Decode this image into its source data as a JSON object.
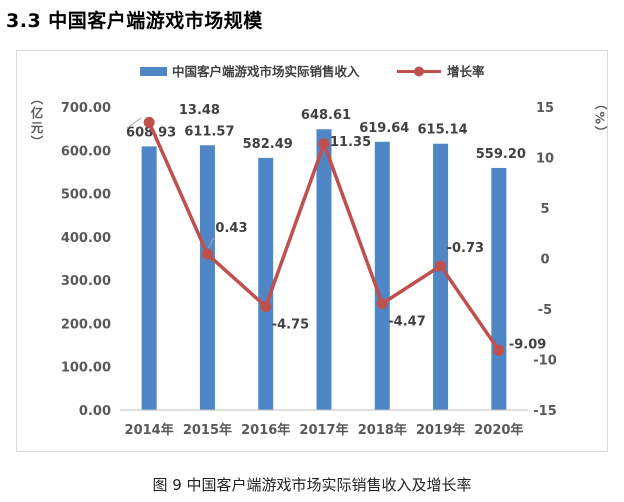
{
  "section_title": "3.3  中国客户端游戏市场规模",
  "caption": "图 9  中国客户端游戏市场实际销售收入及增长率",
  "colors": {
    "bar": "#4f86c6",
    "line": "#c0504d",
    "axis_text": "#595959",
    "gridline": "#d9d9d9"
  },
  "chart_data": {
    "type": "bar",
    "categories": [
      "2014年",
      "2015年",
      "2016年",
      "2017年",
      "2018年",
      "2019年",
      "2020年"
    ],
    "series": [
      {
        "name": "中国客户端游戏市场实际销售收入",
        "type": "bar",
        "axis": "left",
        "values": [
          608.93,
          611.57,
          582.49,
          648.61,
          619.64,
          615.14,
          559.2
        ],
        "labels": [
          "608.93",
          "611.57",
          "582.49",
          "648.61",
          "619.64",
          "615.14",
          "559.20"
        ]
      },
      {
        "name": "增长率",
        "type": "line",
        "axis": "right",
        "values": [
          13.48,
          0.43,
          -4.75,
          11.35,
          -4.47,
          -0.73,
          -9.09
        ],
        "labels": [
          "13.48",
          "0.43",
          "-4.75",
          "11.35",
          "-4.47",
          "-0.73",
          "-9.09"
        ]
      }
    ],
    "ylabel_left": "（亿元）",
    "ylabel_right": "（%）",
    "ylim_left": [
      0,
      700
    ],
    "ylim_right": [
      -15,
      15
    ],
    "yticks_left": [
      "0.00",
      "100.00",
      "200.00",
      "300.00",
      "400.00",
      "500.00",
      "600.00",
      "700.00"
    ],
    "yticks_right": [
      "-15",
      "-10",
      "-5",
      "0",
      "5",
      "10",
      "15"
    ],
    "grid": false,
    "legend_position": "top"
  }
}
